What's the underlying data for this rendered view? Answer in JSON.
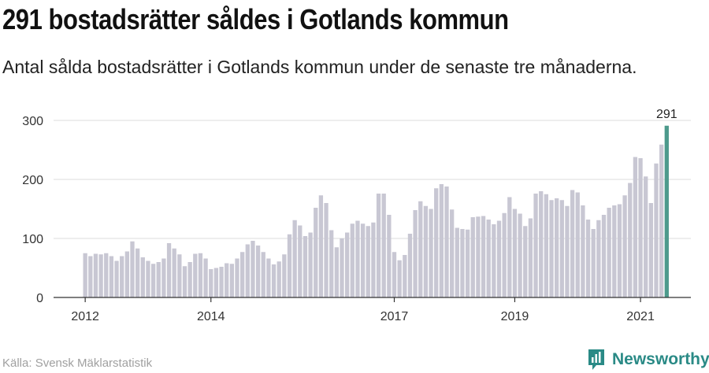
{
  "title": "291 bostadsrätter såldes i Gotlands kommun",
  "subtitle": "Antal sålda bostadsrätter i Gotlands kommun under de senaste tre månaderna.",
  "source": "Källa: Svensk Mäklarstatistik",
  "brand": "Newsworthy",
  "colors": {
    "bar": "#c8c7d3",
    "highlight": "#4d9a8c",
    "grid": "#dcdcdc",
    "brand": "#2a8a86"
  },
  "chart_data": {
    "type": "bar",
    "ylim": [
      0,
      300
    ],
    "yticks": [
      0,
      100,
      200,
      300
    ],
    "xticks": [
      {
        "label": "2012",
        "index": 0
      },
      {
        "label": "2014",
        "index": 24
      },
      {
        "label": "2017",
        "index": 59
      },
      {
        "label": "2019",
        "index": 82
      },
      {
        "label": "2021",
        "index": 106
      }
    ],
    "highlight_label": "291",
    "values": [
      75,
      70,
      74,
      73,
      75,
      70,
      62,
      70,
      78,
      95,
      83,
      68,
      62,
      57,
      60,
      66,
      92,
      83,
      73,
      53,
      60,
      74,
      75,
      66,
      48,
      50,
      52,
      58,
      57,
      66,
      77,
      90,
      96,
      88,
      77,
      66,
      56,
      61,
      73,
      107,
      131,
      122,
      104,
      110,
      152,
      173,
      160,
      114,
      85,
      100,
      110,
      125,
      130,
      125,
      121,
      127,
      176,
      176,
      140,
      77,
      63,
      72,
      108,
      148,
      163,
      155,
      150,
      185,
      192,
      188,
      149,
      118,
      116,
      115,
      136,
      137,
      138,
      132,
      124,
      130,
      143,
      170,
      150,
      142,
      121,
      134,
      176,
      180,
      175,
      165,
      168,
      165,
      155,
      182,
      178,
      156,
      132,
      116,
      131,
      140,
      152,
      156,
      158,
      173,
      194,
      238,
      236,
      205,
      160,
      227,
      259,
      291
    ],
    "highlight_index": 111
  }
}
